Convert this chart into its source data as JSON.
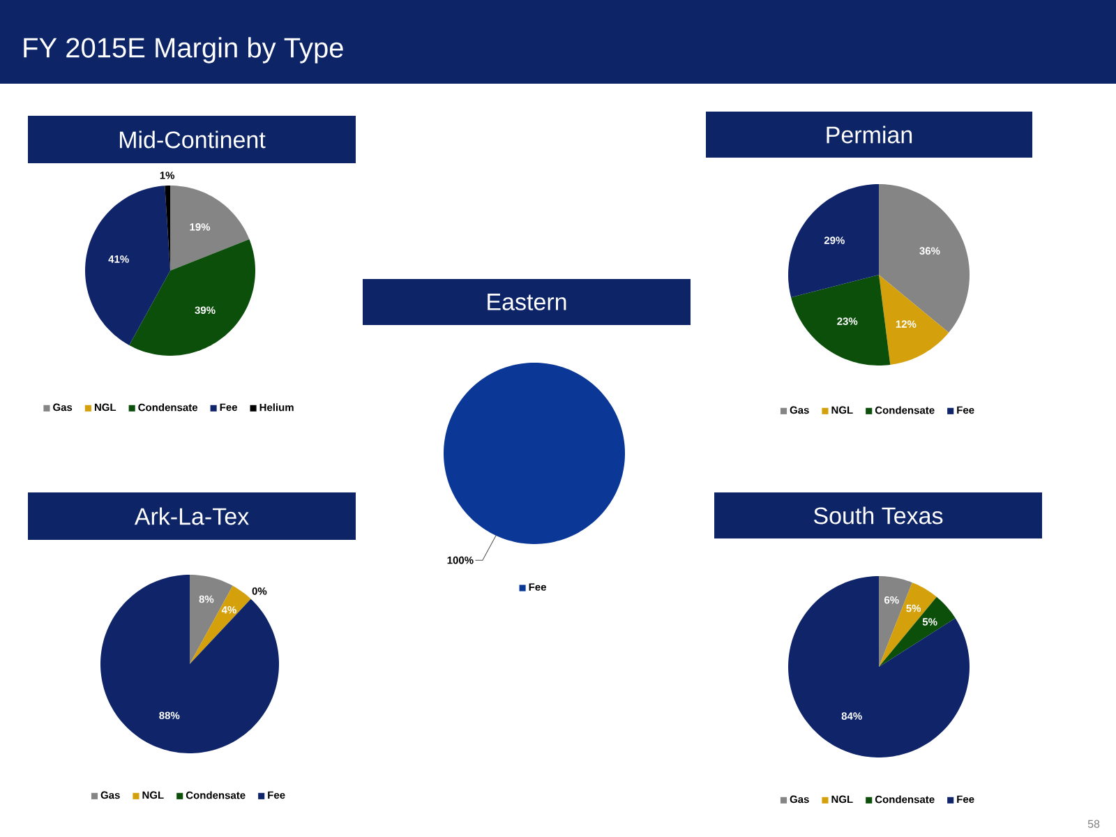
{
  "chart_data": [
    {
      "type": "other",
      "title": "FY 2015E Margin by Type",
      "annotations": [
        "58"
      ]
    },
    {
      "type": "pie",
      "title": "Mid-Continent",
      "categories": [
        "Gas",
        "NGL",
        "Condensate",
        "Fee",
        "Helium"
      ],
      "values": [
        19,
        0,
        39,
        41,
        1
      ],
      "colors": [
        "#858585",
        "#d4a00c",
        "#0b4f0b",
        "#10246a",
        "#000000"
      ],
      "value_labels": [
        "19%",
        null,
        "39%",
        "41%",
        "1%"
      ],
      "legend": "bottom"
    },
    {
      "type": "pie",
      "title": "Permian",
      "categories": [
        "Gas",
        "NGL",
        "Condensate",
        "Fee"
      ],
      "values": [
        36,
        12,
        23,
        29
      ],
      "colors": [
        "#858585",
        "#d4a00c",
        "#0b4f0b",
        "#10246a"
      ],
      "value_labels": [
        "36%",
        "12%",
        "23%",
        "29%"
      ],
      "legend": "bottom"
    },
    {
      "type": "pie",
      "title": "Eastern",
      "categories": [
        "Fee"
      ],
      "values": [
        100
      ],
      "colors": [
        "#0b3796"
      ],
      "value_labels": [
        "100%"
      ],
      "legend": "bottom"
    },
    {
      "type": "pie",
      "title": "Ark-La-Tex",
      "categories": [
        "Gas",
        "NGL",
        "Condensate",
        "Fee"
      ],
      "values": [
        8,
        4,
        0,
        88
      ],
      "colors": [
        "#858585",
        "#d4a00c",
        "#0b4f0b",
        "#10246a"
      ],
      "value_labels": [
        "8%",
        "4%",
        "0%",
        "88%"
      ],
      "legend": "bottom"
    },
    {
      "type": "pie",
      "title": "South Texas",
      "categories": [
        "Gas",
        "NGL",
        "Condensate",
        "Fee"
      ],
      "values": [
        6,
        5,
        5,
        84
      ],
      "colors": [
        "#858585",
        "#d4a00c",
        "#0b4f0b",
        "#10246a"
      ],
      "value_labels": [
        "6%",
        "5%",
        "5%",
        "84%"
      ],
      "legend": "bottom"
    }
  ]
}
